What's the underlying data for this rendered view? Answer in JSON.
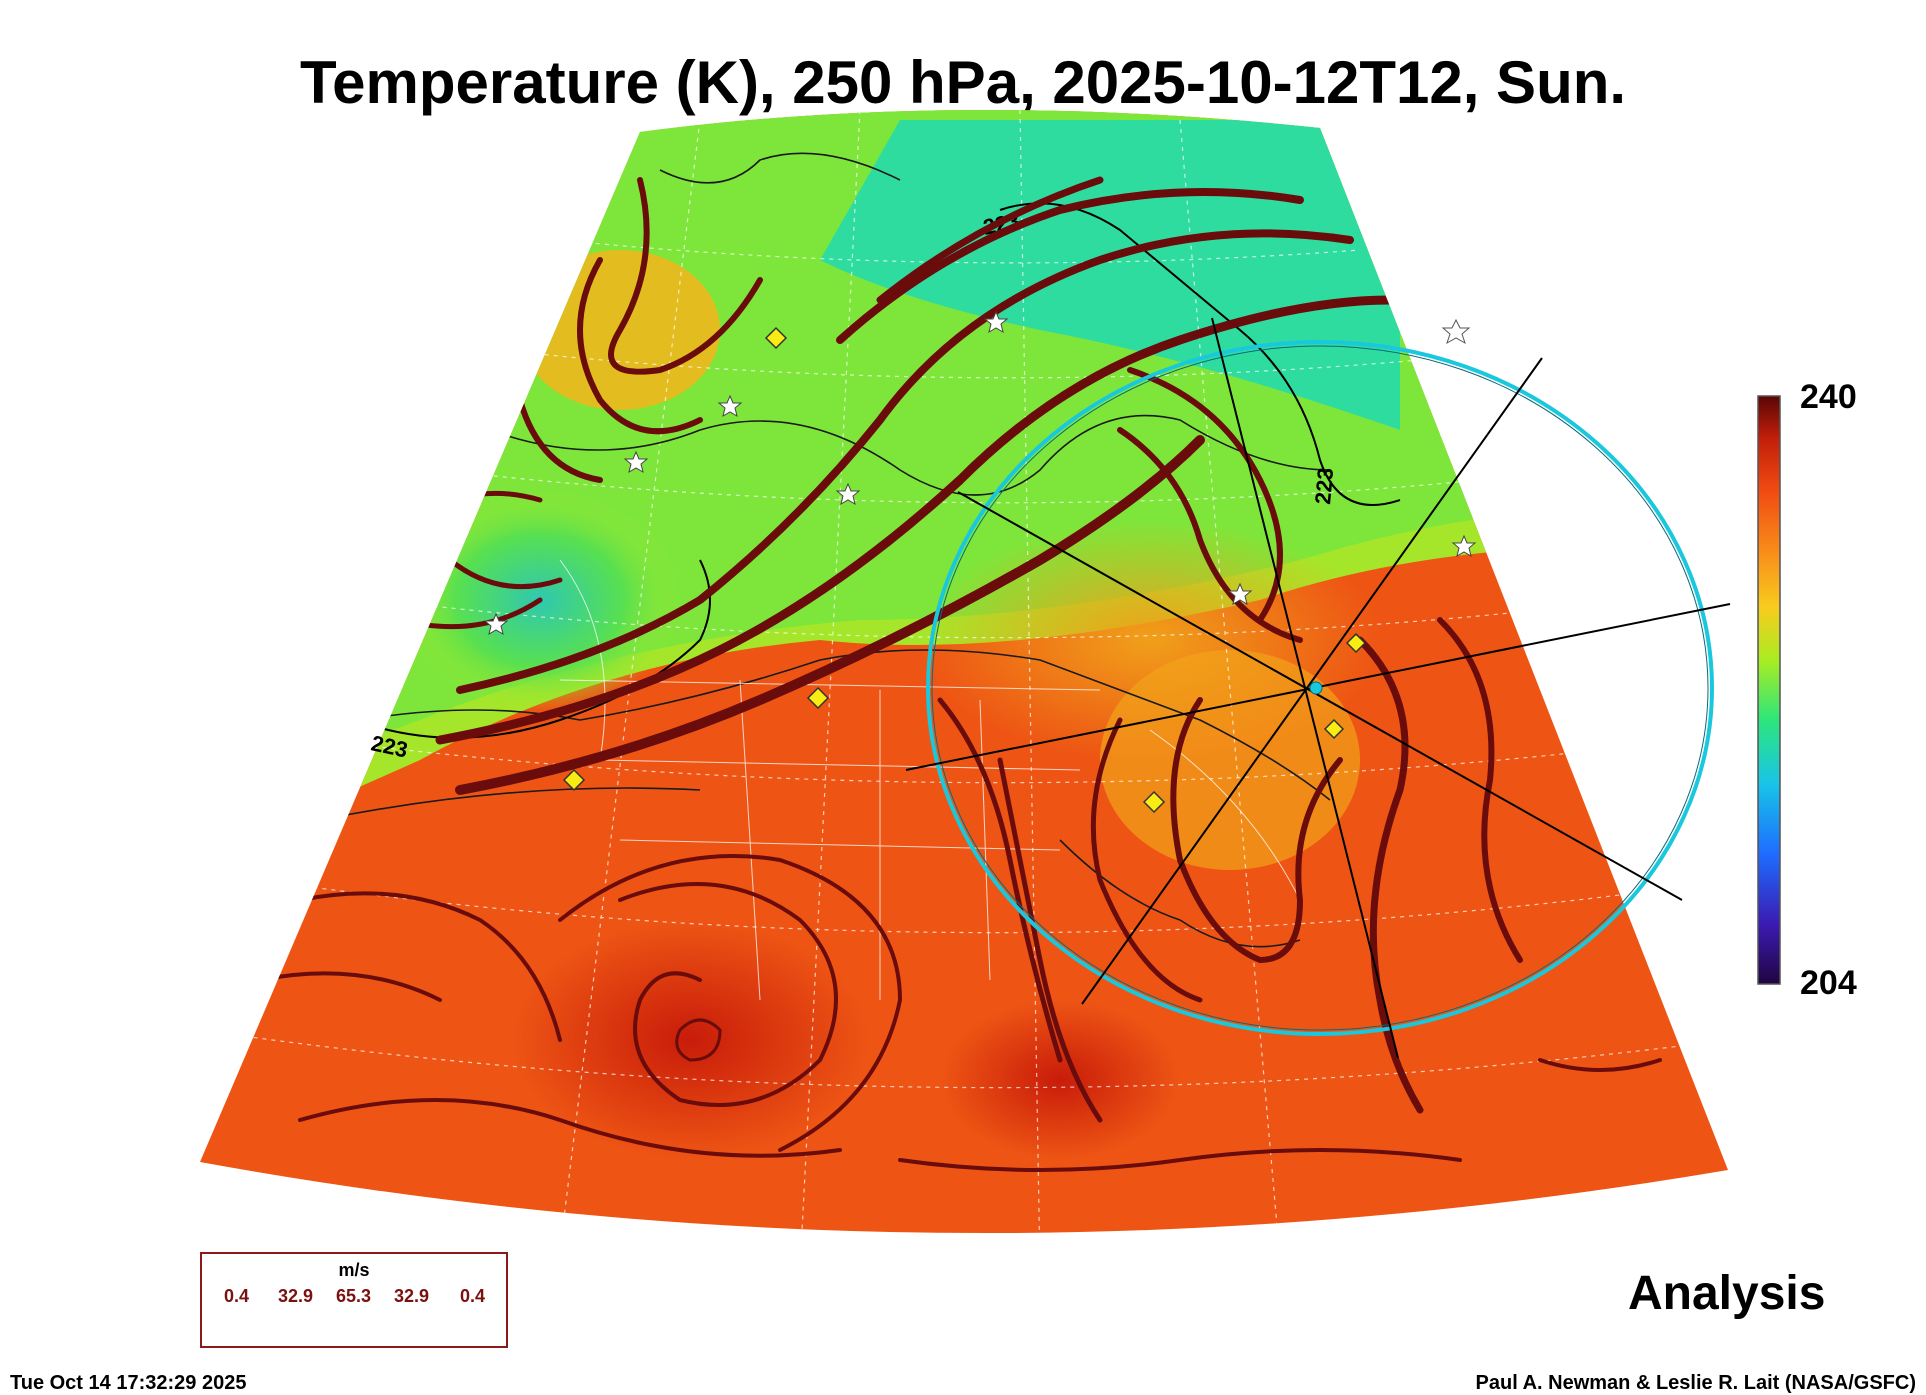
{
  "title": "Temperature (K), 250 hPa, 2025-10-12T12, Sun.",
  "colorbar": {
    "max_label": "240",
    "min_label": "204",
    "range": [
      204,
      240
    ],
    "stops": [
      "#3b0a6b",
      "#2a3cff",
      "#1ea8ff",
      "#19e0c8",
      "#38e84a",
      "#b8ec22",
      "#f8c81e",
      "#f88a1a",
      "#f24a12",
      "#c01e0a",
      "#6a0808"
    ]
  },
  "contour_labels": [
    "223",
    "223",
    "223"
  ],
  "overlay_label": "Analysis",
  "legend": {
    "unit": "m/s",
    "values": [
      "0.4",
      "32.9",
      "65.3",
      "32.9",
      "0.4"
    ]
  },
  "footer": {
    "timestamp": "Tue Oct 14 17:32:29 2025",
    "credit": "Paul A. Newman & Leslie R. Lait (NASA/GSFC)"
  },
  "colors": {
    "streamline": "#6a0c0c",
    "circle": "#19c8dc",
    "marker_diamond": "#f8ec14",
    "marker_star": "#ffffff"
  }
}
